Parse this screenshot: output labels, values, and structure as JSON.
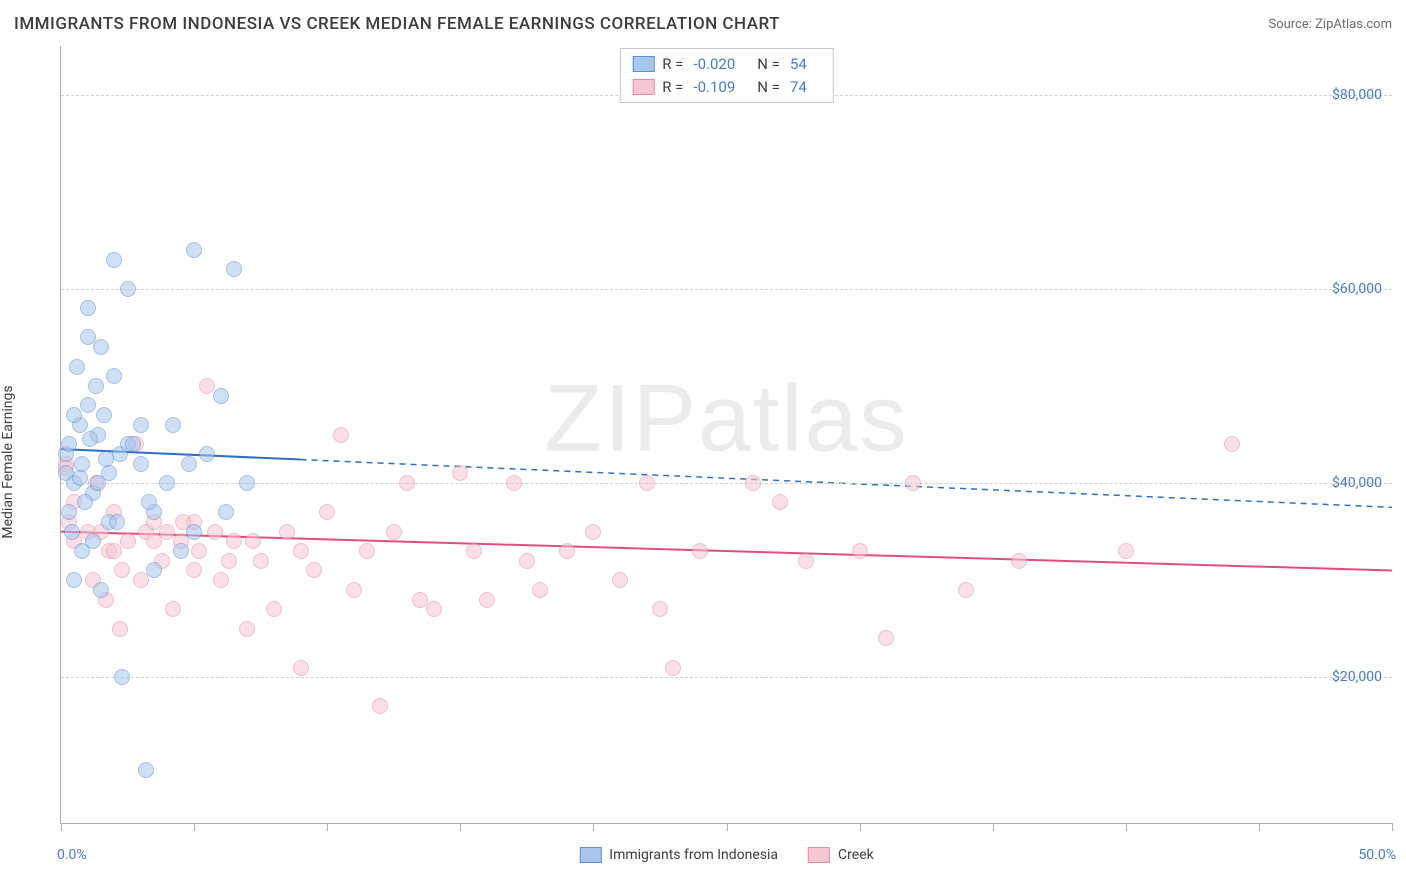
{
  "header": {
    "title": "IMMIGRANTS FROM INDONESIA VS CREEK MEDIAN FEMALE EARNINGS CORRELATION CHART",
    "source_prefix": "Source: ",
    "source": "ZipAtlas.com"
  },
  "chart": {
    "type": "scatter",
    "y_axis_label": "Median Female Earnings",
    "background_color": "#ffffff",
    "grid_color": "#d0d0d0",
    "axis_color": "#b0b0b0",
    "tick_label_color": "#4a7bc8",
    "xlim": [
      0,
      50
    ],
    "ylim": [
      5000,
      85000
    ],
    "x_ticks": [
      0,
      5,
      10,
      15,
      20,
      25,
      30,
      35,
      40,
      45,
      50
    ],
    "x_tick_labels": {
      "left": "0.0%",
      "right": "50.0%"
    },
    "y_gridlines": [
      20000,
      40000,
      60000,
      80000
    ],
    "y_tick_labels": [
      "$20,000",
      "$40,000",
      "$60,000",
      "$80,000"
    ],
    "watermark": "ZIPatlas",
    "marker_radius": 8,
    "marker_opacity": 0.55,
    "series": [
      {
        "name": "Immigrants from Indonesia",
        "fill_color": "#a9c7ec",
        "stroke_color": "#5b8fd6",
        "trend_color": "#2f6fc6",
        "trend_width": 2,
        "r_value": "-0.020",
        "n_value": "54",
        "trend": {
          "x1": 0,
          "y1": 43500,
          "x2": 50,
          "y2": 37500,
          "solid_until_x": 9
        },
        "points": [
          [
            0.2,
            41000
          ],
          [
            0.2,
            43000
          ],
          [
            0.3,
            44000
          ],
          [
            0.4,
            35000
          ],
          [
            0.5,
            30000
          ],
          [
            0.5,
            40000
          ],
          [
            0.6,
            52000
          ],
          [
            0.7,
            46000
          ],
          [
            0.8,
            33000
          ],
          [
            0.8,
            42000
          ],
          [
            1.0,
            48000
          ],
          [
            1.0,
            55000
          ],
          [
            1.0,
            58000
          ],
          [
            1.2,
            34000
          ],
          [
            1.2,
            39000
          ],
          [
            1.3,
            50000
          ],
          [
            1.4,
            45000
          ],
          [
            1.5,
            29000
          ],
          [
            1.5,
            54000
          ],
          [
            1.6,
            47000
          ],
          [
            1.8,
            41000
          ],
          [
            1.8,
            36000
          ],
          [
            2.0,
            63000
          ],
          [
            2.0,
            51000
          ],
          [
            2.2,
            43000
          ],
          [
            2.3,
            20000
          ],
          [
            2.5,
            44000
          ],
          [
            2.5,
            60000
          ],
          [
            3.0,
            42000
          ],
          [
            3.0,
            46000
          ],
          [
            3.2,
            10500
          ],
          [
            3.5,
            31000
          ],
          [
            3.5,
            37000
          ],
          [
            4.0,
            40000
          ],
          [
            4.2,
            46000
          ],
          [
            4.5,
            33000
          ],
          [
            5.0,
            64000
          ],
          [
            5.0,
            35000
          ],
          [
            5.5,
            43000
          ],
          [
            6.0,
            49000
          ],
          [
            6.2,
            37000
          ],
          [
            6.5,
            62000
          ],
          [
            7.0,
            40000
          ],
          [
            1.1,
            44500
          ],
          [
            0.9,
            38000
          ],
          [
            1.7,
            42500
          ],
          [
            2.7,
            44000
          ],
          [
            3.3,
            38000
          ],
          [
            0.5,
            47000
          ],
          [
            2.1,
            36000
          ],
          [
            1.4,
            40000
          ],
          [
            0.7,
            40500
          ],
          [
            0.3,
            37000
          ],
          [
            4.8,
            42000
          ]
        ]
      },
      {
        "name": "Creek",
        "fill_color": "#f6c6d2",
        "stroke_color": "#e88ba5",
        "trend_color": "#e04e7d",
        "trend_width": 2,
        "r_value": "-0.109",
        "n_value": "74",
        "trend": {
          "x1": 0,
          "y1": 35000,
          "x2": 50,
          "y2": 31000,
          "solid_until_x": 50
        },
        "points": [
          [
            0.2,
            42000
          ],
          [
            0.3,
            36000
          ],
          [
            0.5,
            34000
          ],
          [
            0.5,
            38000
          ],
          [
            1.0,
            35000
          ],
          [
            1.2,
            30000
          ],
          [
            1.3,
            40000
          ],
          [
            1.5,
            35000
          ],
          [
            1.8,
            33000
          ],
          [
            2.0,
            37000
          ],
          [
            2.2,
            25000
          ],
          [
            2.5,
            34000
          ],
          [
            2.8,
            44000
          ],
          [
            3.0,
            30000
          ],
          [
            3.2,
            35000
          ],
          [
            3.5,
            36000
          ],
          [
            3.8,
            32000
          ],
          [
            4.0,
            35000
          ],
          [
            4.2,
            27000
          ],
          [
            4.5,
            34000
          ],
          [
            5.0,
            31000
          ],
          [
            5.2,
            33000
          ],
          [
            5.5,
            50000
          ],
          [
            5.8,
            35000
          ],
          [
            6.0,
            30000
          ],
          [
            6.5,
            34000
          ],
          [
            7.0,
            25000
          ],
          [
            7.5,
            32000
          ],
          [
            8.0,
            27000
          ],
          [
            8.5,
            35000
          ],
          [
            9.0,
            21000
          ],
          [
            9.5,
            31000
          ],
          [
            10.0,
            37000
          ],
          [
            10.5,
            45000
          ],
          [
            11.0,
            29000
          ],
          [
            11.5,
            33000
          ],
          [
            12.0,
            17000
          ],
          [
            12.5,
            35000
          ],
          [
            13.0,
            40000
          ],
          [
            13.5,
            28000
          ],
          [
            14.0,
            27000
          ],
          [
            15.0,
            41000
          ],
          [
            15.5,
            33000
          ],
          [
            16.0,
            28000
          ],
          [
            17.0,
            40000
          ],
          [
            17.5,
            32000
          ],
          [
            18.0,
            29000
          ],
          [
            19.0,
            33000
          ],
          [
            20.0,
            35000
          ],
          [
            21.0,
            30000
          ],
          [
            22.0,
            40000
          ],
          [
            22.5,
            27000
          ],
          [
            23.0,
            21000
          ],
          [
            24.0,
            33000
          ],
          [
            26.0,
            40000
          ],
          [
            27.0,
            38000
          ],
          [
            28.0,
            32000
          ],
          [
            30.0,
            33000
          ],
          [
            31.0,
            24000
          ],
          [
            32.0,
            40000
          ],
          [
            34.0,
            29000
          ],
          [
            36.0,
            32000
          ],
          [
            40.0,
            33000
          ],
          [
            44.0,
            44000
          ],
          [
            2.0,
            33000
          ],
          [
            3.5,
            34000
          ],
          [
            5.0,
            36000
          ],
          [
            7.2,
            34000
          ],
          [
            9.0,
            33000
          ],
          [
            1.7,
            28000
          ],
          [
            2.3,
            31000
          ],
          [
            4.6,
            36000
          ],
          [
            6.3,
            32000
          ],
          [
            0.2,
            41500
          ]
        ]
      }
    ],
    "bottom_legend": [
      {
        "swatch_fill": "#a9c7ec",
        "swatch_stroke": "#5b8fd6",
        "label": "Immigrants from Indonesia"
      },
      {
        "swatch_fill": "#f6c6d2",
        "swatch_stroke": "#e88ba5",
        "label": "Creek"
      }
    ],
    "legend_labels": {
      "r": "R =",
      "n": "N ="
    }
  }
}
